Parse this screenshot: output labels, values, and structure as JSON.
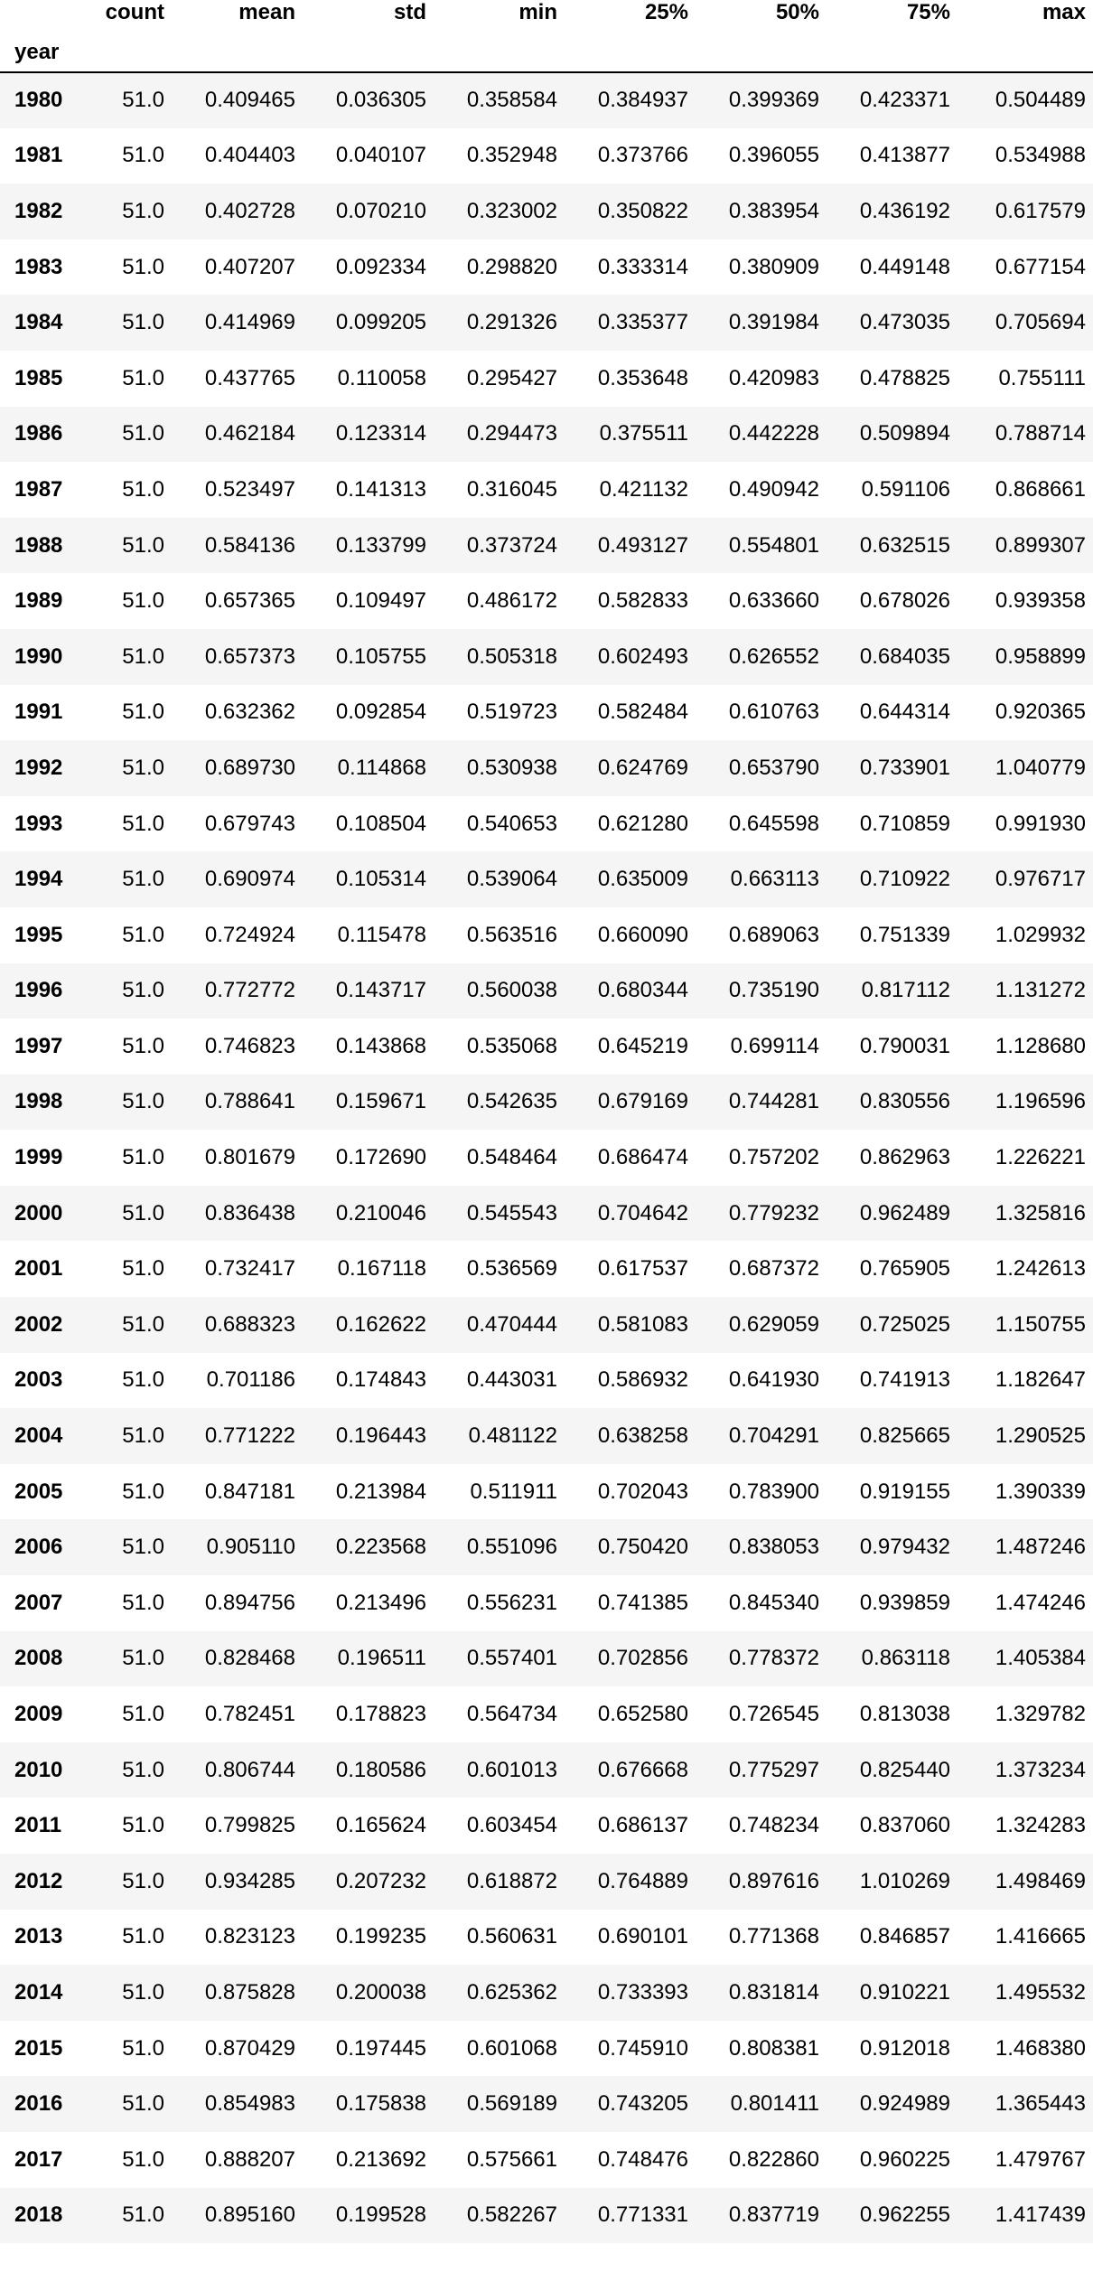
{
  "table": {
    "columns": [
      "count",
      "mean",
      "std",
      "min",
      "25%",
      "50%",
      "75%",
      "max"
    ],
    "index_name": "year",
    "rows": [
      {
        "year": "1980",
        "values": [
          "51.0",
          "0.409465",
          "0.036305",
          "0.358584",
          "0.384937",
          "0.399369",
          "0.423371",
          "0.504489"
        ]
      },
      {
        "year": "1981",
        "values": [
          "51.0",
          "0.404403",
          "0.040107",
          "0.352948",
          "0.373766",
          "0.396055",
          "0.413877",
          "0.534988"
        ]
      },
      {
        "year": "1982",
        "values": [
          "51.0",
          "0.402728",
          "0.070210",
          "0.323002",
          "0.350822",
          "0.383954",
          "0.436192",
          "0.617579"
        ]
      },
      {
        "year": "1983",
        "values": [
          "51.0",
          "0.407207",
          "0.092334",
          "0.298820",
          "0.333314",
          "0.380909",
          "0.449148",
          "0.677154"
        ]
      },
      {
        "year": "1984",
        "values": [
          "51.0",
          "0.414969",
          "0.099205",
          "0.291326",
          "0.335377",
          "0.391984",
          "0.473035",
          "0.705694"
        ]
      },
      {
        "year": "1985",
        "values": [
          "51.0",
          "0.437765",
          "0.110058",
          "0.295427",
          "0.353648",
          "0.420983",
          "0.478825",
          "0.755111"
        ]
      },
      {
        "year": "1986",
        "values": [
          "51.0",
          "0.462184",
          "0.123314",
          "0.294473",
          "0.375511",
          "0.442228",
          "0.509894",
          "0.788714"
        ]
      },
      {
        "year": "1987",
        "values": [
          "51.0",
          "0.523497",
          "0.141313",
          "0.316045",
          "0.421132",
          "0.490942",
          "0.591106",
          "0.868661"
        ]
      },
      {
        "year": "1988",
        "values": [
          "51.0",
          "0.584136",
          "0.133799",
          "0.373724",
          "0.493127",
          "0.554801",
          "0.632515",
          "0.899307"
        ]
      },
      {
        "year": "1989",
        "values": [
          "51.0",
          "0.657365",
          "0.109497",
          "0.486172",
          "0.582833",
          "0.633660",
          "0.678026",
          "0.939358"
        ]
      },
      {
        "year": "1990",
        "values": [
          "51.0",
          "0.657373",
          "0.105755",
          "0.505318",
          "0.602493",
          "0.626552",
          "0.684035",
          "0.958899"
        ]
      },
      {
        "year": "1991",
        "values": [
          "51.0",
          "0.632362",
          "0.092854",
          "0.519723",
          "0.582484",
          "0.610763",
          "0.644314",
          "0.920365"
        ]
      },
      {
        "year": "1992",
        "values": [
          "51.0",
          "0.689730",
          "0.114868",
          "0.530938",
          "0.624769",
          "0.653790",
          "0.733901",
          "1.040779"
        ]
      },
      {
        "year": "1993",
        "values": [
          "51.0",
          "0.679743",
          "0.108504",
          "0.540653",
          "0.621280",
          "0.645598",
          "0.710859",
          "0.991930"
        ]
      },
      {
        "year": "1994",
        "values": [
          "51.0",
          "0.690974",
          "0.105314",
          "0.539064",
          "0.635009",
          "0.663113",
          "0.710922",
          "0.976717"
        ]
      },
      {
        "year": "1995",
        "values": [
          "51.0",
          "0.724924",
          "0.115478",
          "0.563516",
          "0.660090",
          "0.689063",
          "0.751339",
          "1.029932"
        ]
      },
      {
        "year": "1996",
        "values": [
          "51.0",
          "0.772772",
          "0.143717",
          "0.560038",
          "0.680344",
          "0.735190",
          "0.817112",
          "1.131272"
        ]
      },
      {
        "year": "1997",
        "values": [
          "51.0",
          "0.746823",
          "0.143868",
          "0.535068",
          "0.645219",
          "0.699114",
          "0.790031",
          "1.128680"
        ]
      },
      {
        "year": "1998",
        "values": [
          "51.0",
          "0.788641",
          "0.159671",
          "0.542635",
          "0.679169",
          "0.744281",
          "0.830556",
          "1.196596"
        ]
      },
      {
        "year": "1999",
        "values": [
          "51.0",
          "0.801679",
          "0.172690",
          "0.548464",
          "0.686474",
          "0.757202",
          "0.862963",
          "1.226221"
        ]
      },
      {
        "year": "2000",
        "values": [
          "51.0",
          "0.836438",
          "0.210046",
          "0.545543",
          "0.704642",
          "0.779232",
          "0.962489",
          "1.325816"
        ]
      },
      {
        "year": "2001",
        "values": [
          "51.0",
          "0.732417",
          "0.167118",
          "0.536569",
          "0.617537",
          "0.687372",
          "0.765905",
          "1.242613"
        ]
      },
      {
        "year": "2002",
        "values": [
          "51.0",
          "0.688323",
          "0.162622",
          "0.470444",
          "0.581083",
          "0.629059",
          "0.725025",
          "1.150755"
        ]
      },
      {
        "year": "2003",
        "values": [
          "51.0",
          "0.701186",
          "0.174843",
          "0.443031",
          "0.586932",
          "0.641930",
          "0.741913",
          "1.182647"
        ]
      },
      {
        "year": "2004",
        "values": [
          "51.0",
          "0.771222",
          "0.196443",
          "0.481122",
          "0.638258",
          "0.704291",
          "0.825665",
          "1.290525"
        ]
      },
      {
        "year": "2005",
        "values": [
          "51.0",
          "0.847181",
          "0.213984",
          "0.511911",
          "0.702043",
          "0.783900",
          "0.919155",
          "1.390339"
        ]
      },
      {
        "year": "2006",
        "values": [
          "51.0",
          "0.905110",
          "0.223568",
          "0.551096",
          "0.750420",
          "0.838053",
          "0.979432",
          "1.487246"
        ]
      },
      {
        "year": "2007",
        "values": [
          "51.0",
          "0.894756",
          "0.213496",
          "0.556231",
          "0.741385",
          "0.845340",
          "0.939859",
          "1.474246"
        ]
      },
      {
        "year": "2008",
        "values": [
          "51.0",
          "0.828468",
          "0.196511",
          "0.557401",
          "0.702856",
          "0.778372",
          "0.863118",
          "1.405384"
        ]
      },
      {
        "year": "2009",
        "values": [
          "51.0",
          "0.782451",
          "0.178823",
          "0.564734",
          "0.652580",
          "0.726545",
          "0.813038",
          "1.329782"
        ]
      },
      {
        "year": "2010",
        "values": [
          "51.0",
          "0.806744",
          "0.180586",
          "0.601013",
          "0.676668",
          "0.775297",
          "0.825440",
          "1.373234"
        ]
      },
      {
        "year": "2011",
        "values": [
          "51.0",
          "0.799825",
          "0.165624",
          "0.603454",
          "0.686137",
          "0.748234",
          "0.837060",
          "1.324283"
        ]
      },
      {
        "year": "2012",
        "values": [
          "51.0",
          "0.934285",
          "0.207232",
          "0.618872",
          "0.764889",
          "0.897616",
          "1.010269",
          "1.498469"
        ]
      },
      {
        "year": "2013",
        "values": [
          "51.0",
          "0.823123",
          "0.199235",
          "0.560631",
          "0.690101",
          "0.771368",
          "0.846857",
          "1.416665"
        ]
      },
      {
        "year": "2014",
        "values": [
          "51.0",
          "0.875828",
          "0.200038",
          "0.625362",
          "0.733393",
          "0.831814",
          "0.910221",
          "1.495532"
        ]
      },
      {
        "year": "2015",
        "values": [
          "51.0",
          "0.870429",
          "0.197445",
          "0.601068",
          "0.745910",
          "0.808381",
          "0.912018",
          "1.468380"
        ]
      },
      {
        "year": "2016",
        "values": [
          "51.0",
          "0.854983",
          "0.175838",
          "0.569189",
          "0.743205",
          "0.801411",
          "0.924989",
          "1.365443"
        ]
      },
      {
        "year": "2017",
        "values": [
          "51.0",
          "0.888207",
          "0.213692",
          "0.575661",
          "0.748476",
          "0.822860",
          "0.960225",
          "1.479767"
        ]
      },
      {
        "year": "2018",
        "values": [
          "51.0",
          "0.895160",
          "0.199528",
          "0.582267",
          "0.771331",
          "0.837719",
          "0.962255",
          "1.417439"
        ]
      }
    ]
  }
}
